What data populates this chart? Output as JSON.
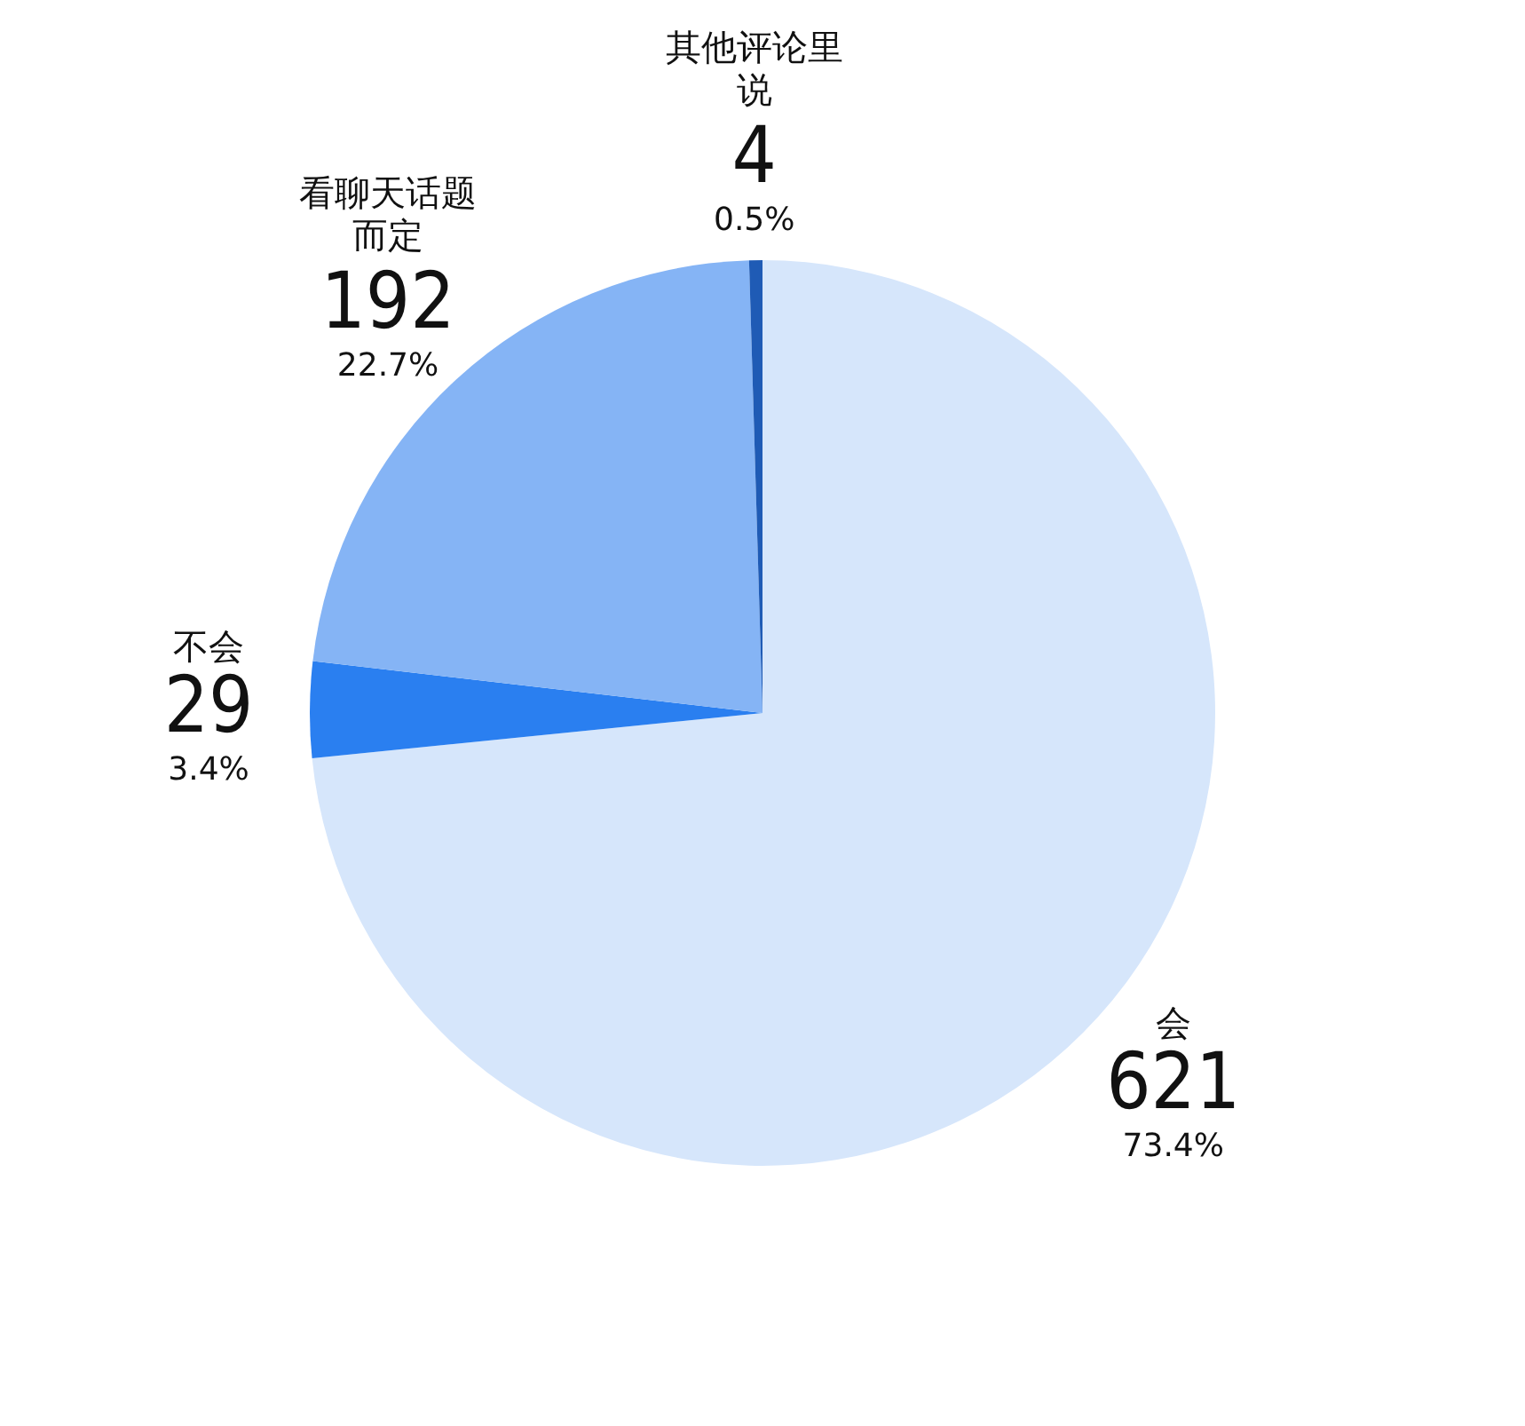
{
  "chart_data": {
    "type": "pie",
    "categories": [
      "会",
      "不会",
      "看聊天话题而定",
      "其他评论里说"
    ],
    "values": [
      621,
      29,
      192,
      4
    ],
    "colors": [
      "#d6e6fb",
      "#2a7ff0",
      "#85b4f5",
      "#1f5bb5"
    ],
    "data_labels": true,
    "annotations": [
      "73.4%",
      "3.4%",
      "22.7%",
      "0.5%"
    ]
  }
}
